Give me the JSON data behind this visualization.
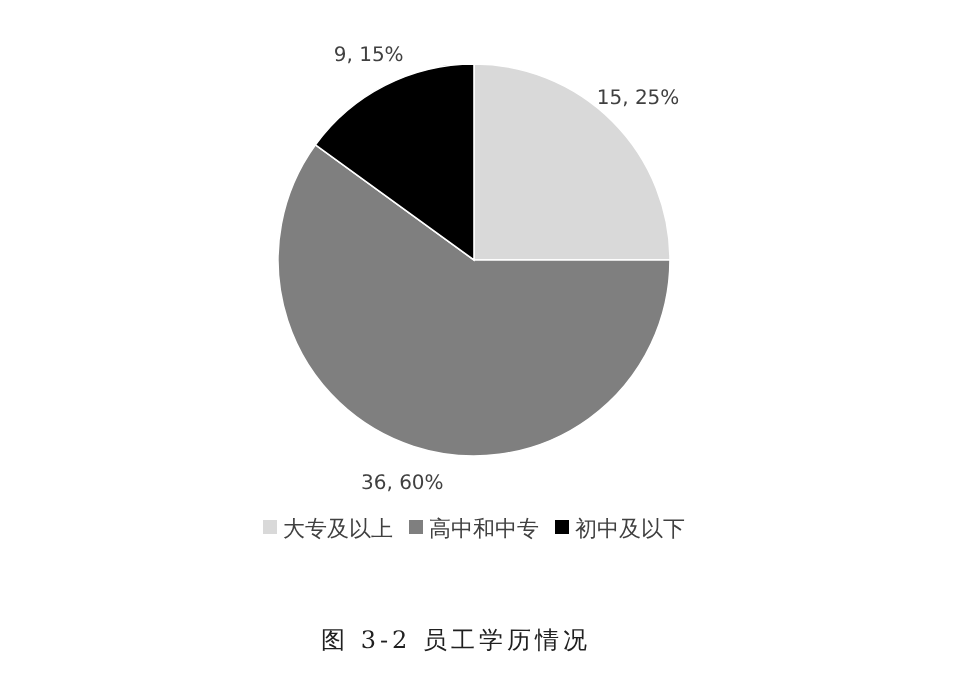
{
  "chart_data": {
    "type": "pie",
    "categories": [
      "大专及以上",
      "高中和中专",
      "初中及以下"
    ],
    "values": [
      15,
      36,
      9
    ],
    "value_labels": [
      "15, 25%",
      "36, 60%",
      "9, 15%"
    ],
    "colors": [
      "#d9d9d9",
      "#7f7f7f",
      "#000000"
    ],
    "legend": "bottom",
    "annotations": [
      "图 3-2 员工学历情况"
    ]
  }
}
